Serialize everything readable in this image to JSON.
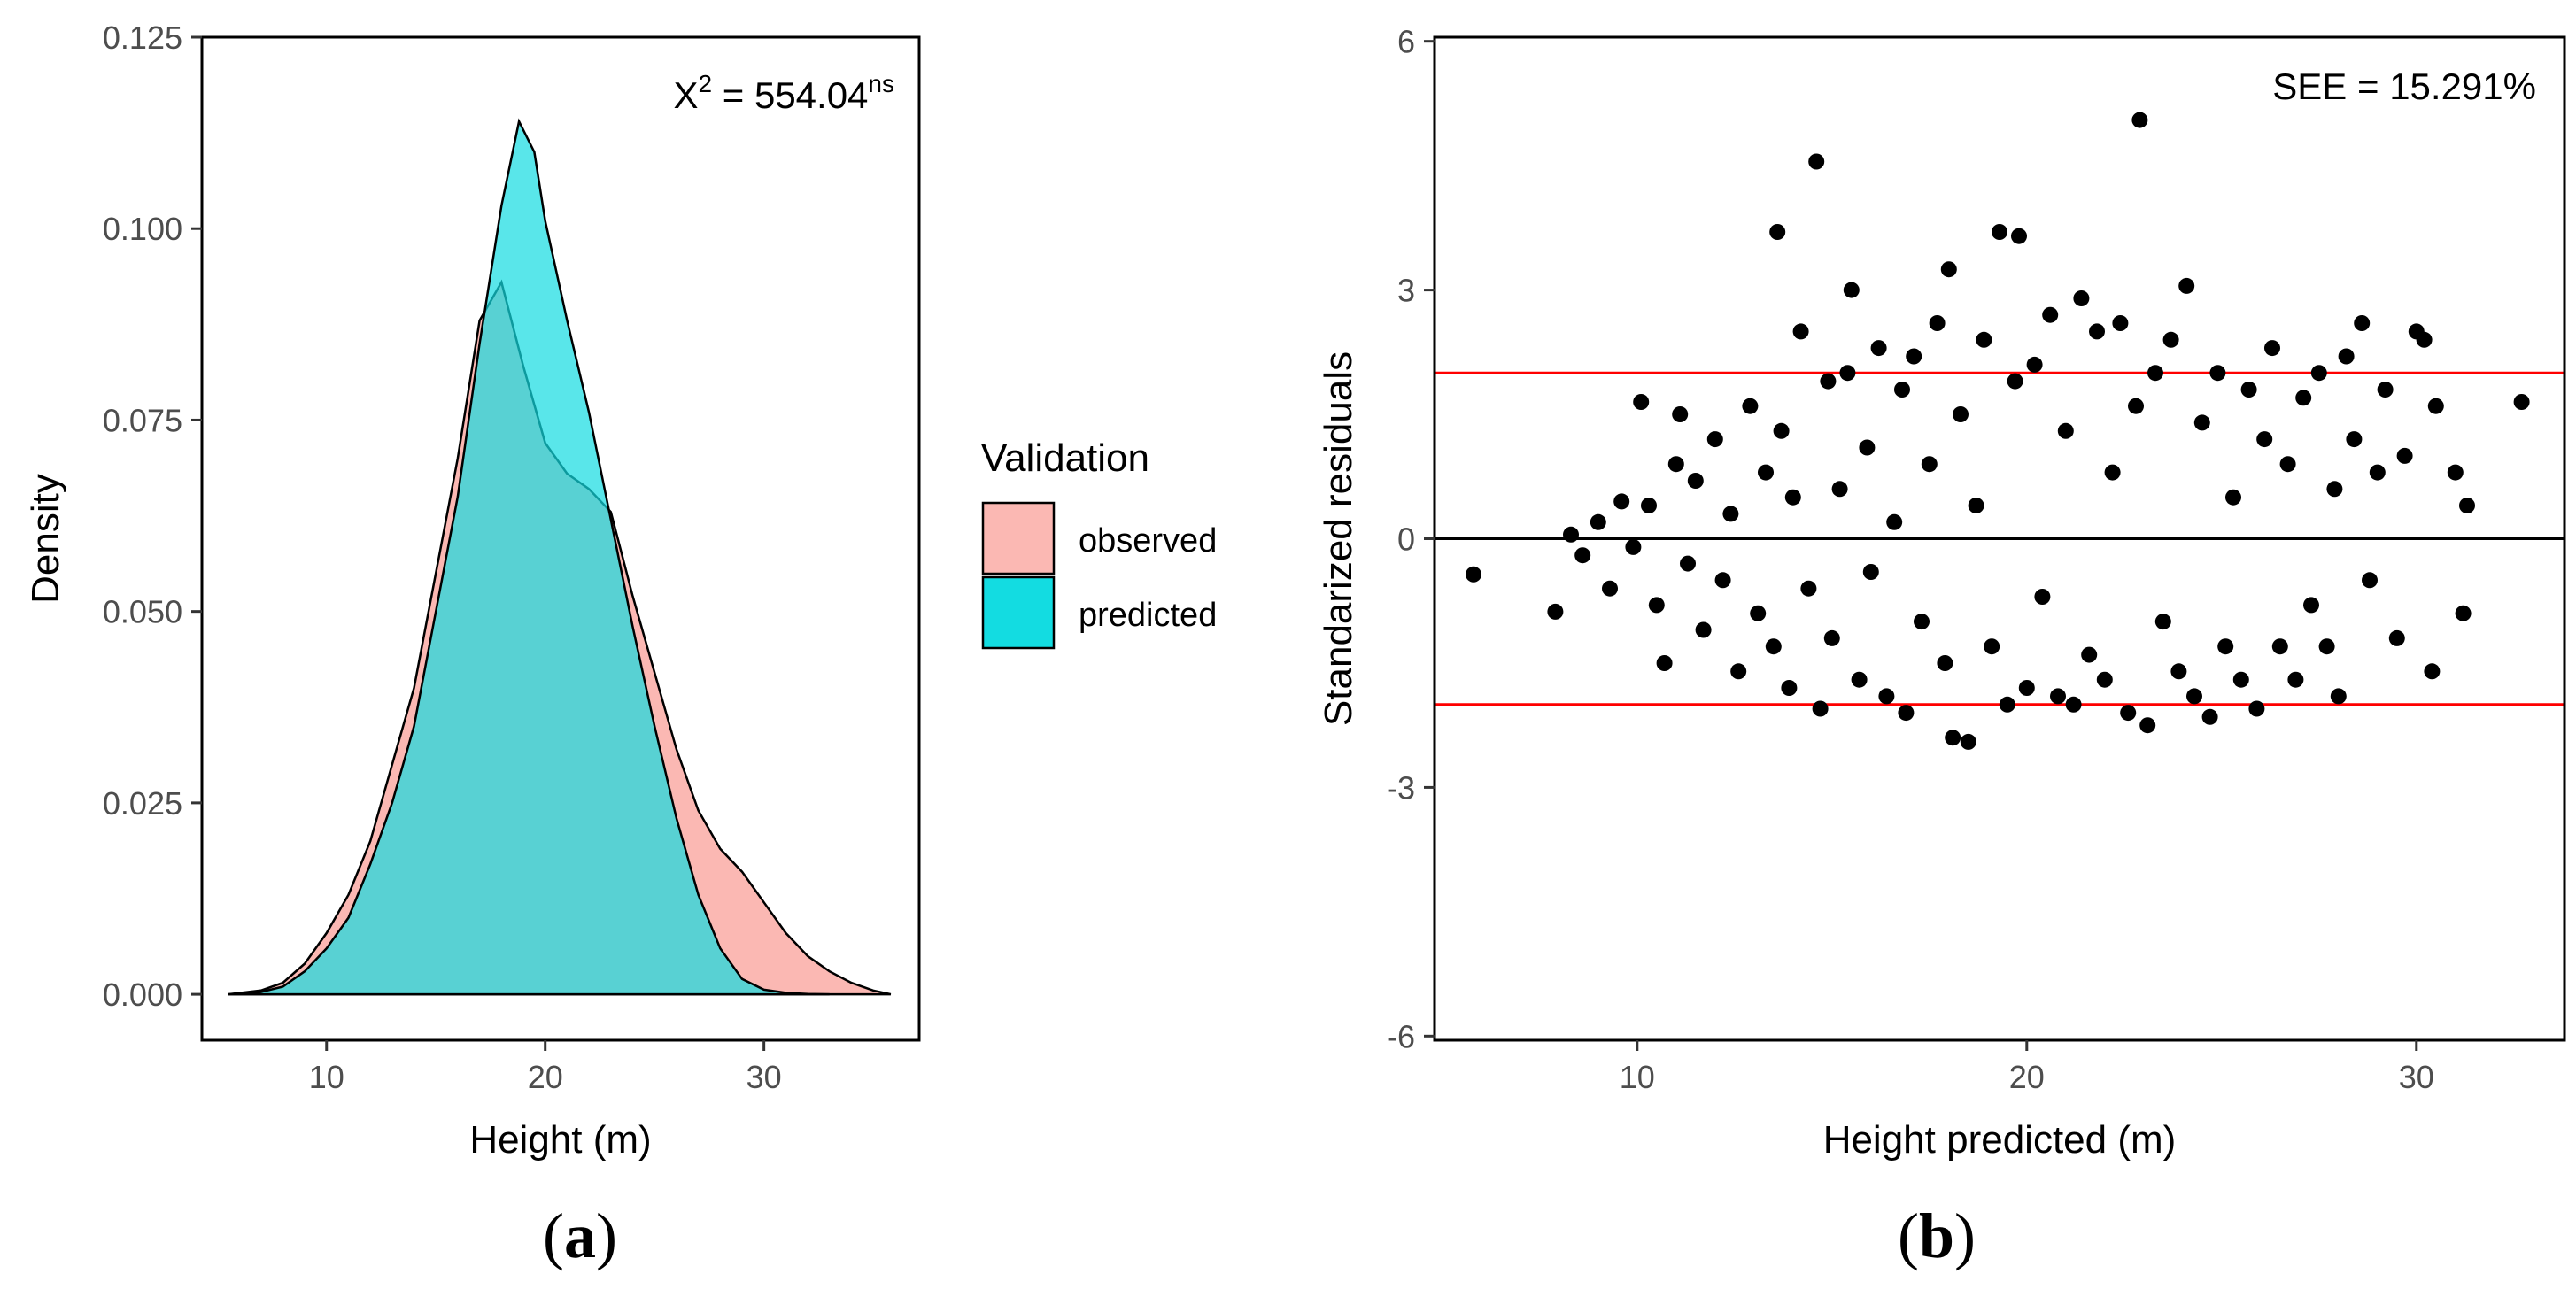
{
  "figure": {
    "label_a": "a",
    "label_b": "b"
  },
  "chart_data": [
    {
      "type": "area",
      "panel": "a",
      "xlabel": "Height (m)",
      "ylabel": "Density",
      "xlim": [
        4.3,
        37.1
      ],
      "ylim": [
        -0.006,
        0.125
      ],
      "xticks": [
        10,
        20,
        30
      ],
      "yticks": [
        0.0,
        0.025,
        0.05,
        0.075,
        0.1,
        0.125
      ],
      "ytick_labels": [
        "0.000",
        "0.025",
        "0.050",
        "0.075",
        "0.100",
        "0.125"
      ],
      "annotation": {
        "base": "X",
        "sup1": "2",
        "mid": " = 554.04",
        "sup2": "ns"
      },
      "grid": false,
      "legend": {
        "title": "Validation",
        "placement": "right",
        "entries": [
          {
            "label": "observed",
            "color": "#F8766D"
          },
          {
            "label": "predicted",
            "color": "#00BFC4"
          }
        ]
      },
      "series": [
        {
          "name": "observed",
          "color": "#F8766D",
          "fill": "#FBB8B3",
          "x": [
            5.5,
            7,
            8,
            9,
            10,
            11,
            12,
            13,
            14,
            15,
            16,
            17,
            18,
            19,
            20,
            21,
            22,
            23,
            24,
            25,
            26,
            27,
            28,
            29,
            30,
            31,
            32,
            33,
            34,
            35,
            35.8
          ],
          "y": [
            0.0,
            0.0005,
            0.0015,
            0.004,
            0.008,
            0.013,
            0.02,
            0.03,
            0.04,
            0.055,
            0.07,
            0.088,
            0.093,
            0.082,
            0.072,
            0.068,
            0.066,
            0.063,
            0.052,
            0.042,
            0.032,
            0.024,
            0.019,
            0.016,
            0.012,
            0.008,
            0.005,
            0.003,
            0.0015,
            0.0005,
            0.0
          ]
        },
        {
          "name": "predicted",
          "color": "#00BFC4",
          "fill": "#13DCE1",
          "x": [
            5.5,
            7,
            8,
            9,
            10,
            11,
            12,
            13,
            14,
            15,
            16,
            17,
            18,
            18.8,
            19.5,
            20,
            21,
            22,
            23,
            24,
            25,
            26,
            27,
            28,
            29,
            30,
            31,
            32,
            33
          ],
          "y": [
            0.0,
            0.0003,
            0.001,
            0.003,
            0.006,
            0.01,
            0.017,
            0.025,
            0.035,
            0.05,
            0.065,
            0.085,
            0.103,
            0.114,
            0.11,
            0.101,
            0.088,
            0.076,
            0.062,
            0.048,
            0.035,
            0.023,
            0.013,
            0.006,
            0.002,
            0.0006,
            0.0002,
            5e-05,
            0.0
          ]
        }
      ]
    },
    {
      "type": "scatter",
      "panel": "b",
      "xlabel": "Height predicted (m)",
      "ylabel": "Standarized residuals",
      "xlim": [
        4.8,
        33.8
      ],
      "ylim": [
        -6.05,
        6.05
      ],
      "xticks": [
        10,
        20,
        30
      ],
      "yticks": [
        -6,
        -3,
        0,
        3,
        6
      ],
      "annotation": "SEE = 15.291%",
      "grid": false,
      "reference_lines": [
        {
          "y": 2,
          "color": "#FF0000"
        },
        {
          "y": 0,
          "color": "#000000"
        },
        {
          "y": -2,
          "color": "#FF0000"
        }
      ],
      "point_color": "#000000",
      "points": [
        [
          5.8,
          -0.43
        ],
        [
          7.9,
          -0.88
        ],
        [
          8.3,
          0.05
        ],
        [
          8.6,
          -0.2
        ],
        [
          9.0,
          0.2
        ],
        [
          9.3,
          -0.6
        ],
        [
          9.6,
          0.45
        ],
        [
          9.9,
          -0.1
        ],
        [
          10.1,
          1.65
        ],
        [
          10.3,
          0.4
        ],
        [
          10.5,
          -0.8
        ],
        [
          10.7,
          -1.5
        ],
        [
          11.0,
          0.9
        ],
        [
          11.1,
          1.5
        ],
        [
          11.3,
          -0.3
        ],
        [
          11.5,
          0.7
        ],
        [
          11.7,
          -1.1
        ],
        [
          12.0,
          1.2
        ],
        [
          12.2,
          -0.5
        ],
        [
          12.4,
          0.3
        ],
        [
          12.6,
          -1.6
        ],
        [
          12.9,
          1.6
        ],
        [
          13.1,
          -0.9
        ],
        [
          13.3,
          0.8
        ],
        [
          13.5,
          -1.3
        ],
        [
          13.6,
          3.7
        ],
        [
          13.7,
          1.3
        ],
        [
          13.9,
          -1.8
        ],
        [
          14.0,
          0.5
        ],
        [
          14.2,
          2.5
        ],
        [
          14.4,
          -0.6
        ],
        [
          14.6,
          4.55
        ],
        [
          14.7,
          -2.05
        ],
        [
          14.9,
          1.9
        ],
        [
          15.0,
          -1.2
        ],
        [
          15.2,
          0.6
        ],
        [
          15.4,
          2.0
        ],
        [
          15.5,
          3.0
        ],
        [
          15.7,
          -1.7
        ],
        [
          15.9,
          1.1
        ],
        [
          16.0,
          -0.4
        ],
        [
          16.2,
          2.3
        ],
        [
          16.4,
          -1.9
        ],
        [
          16.6,
          0.2
        ],
        [
          16.8,
          1.8
        ],
        [
          16.9,
          -2.1
        ],
        [
          17.1,
          2.2
        ],
        [
          17.3,
          -1.0
        ],
        [
          17.5,
          0.9
        ],
        [
          17.7,
          2.6
        ],
        [
          17.9,
          -1.5
        ],
        [
          18.0,
          3.25
        ],
        [
          18.1,
          -2.4
        ],
        [
          18.3,
          1.5
        ],
        [
          18.5,
          -2.45
        ],
        [
          18.7,
          0.4
        ],
        [
          18.9,
          2.4
        ],
        [
          19.1,
          -1.3
        ],
        [
          19.3,
          3.7
        ],
        [
          19.5,
          -2.0
        ],
        [
          19.7,
          1.9
        ],
        [
          19.8,
          3.65
        ],
        [
          20.0,
          -1.8
        ],
        [
          20.2,
          2.1
        ],
        [
          20.4,
          -0.7
        ],
        [
          20.6,
          2.7
        ],
        [
          20.8,
          -1.9
        ],
        [
          21.0,
          1.3
        ],
        [
          21.2,
          -2.0
        ],
        [
          21.4,
          2.9
        ],
        [
          21.6,
          -1.4
        ],
        [
          21.8,
          2.5
        ],
        [
          22.0,
          -1.7
        ],
        [
          22.2,
          0.8
        ],
        [
          22.4,
          2.6
        ],
        [
          22.6,
          -2.1
        ],
        [
          22.8,
          1.6
        ],
        [
          22.9,
          5.05
        ],
        [
          23.1,
          -2.25
        ],
        [
          23.3,
          2.0
        ],
        [
          23.5,
          -1.0
        ],
        [
          23.7,
          2.4
        ],
        [
          23.9,
          -1.6
        ],
        [
          24.1,
          3.05
        ],
        [
          24.3,
          -1.9
        ],
        [
          24.5,
          1.4
        ],
        [
          24.7,
          -2.15
        ],
        [
          24.9,
          2.0
        ],
        [
          25.1,
          -1.3
        ],
        [
          25.3,
          0.5
        ],
        [
          25.5,
          -1.7
        ],
        [
          25.7,
          1.8
        ],
        [
          25.9,
          -2.05
        ],
        [
          26.1,
          1.2
        ],
        [
          26.3,
          2.3
        ],
        [
          26.5,
          -1.3
        ],
        [
          26.7,
          0.9
        ],
        [
          26.9,
          -1.7
        ],
        [
          27.1,
          1.7
        ],
        [
          27.3,
          -0.8
        ],
        [
          27.5,
          2.0
        ],
        [
          27.7,
          -1.3
        ],
        [
          27.9,
          0.6
        ],
        [
          28.0,
          -1.9
        ],
        [
          28.2,
          2.2
        ],
        [
          28.4,
          1.2
        ],
        [
          28.6,
          2.6
        ],
        [
          28.8,
          -0.5
        ],
        [
          29.0,
          0.8
        ],
        [
          29.2,
          1.8
        ],
        [
          29.5,
          -1.2
        ],
        [
          29.7,
          1.0
        ],
        [
          30.0,
          2.5
        ],
        [
          30.2,
          2.4
        ],
        [
          30.4,
          -1.6
        ],
        [
          30.5,
          1.6
        ],
        [
          31.0,
          0.8
        ],
        [
          31.2,
          -0.9
        ],
        [
          31.3,
          0.4
        ],
        [
          32.7,
          1.65
        ]
      ]
    }
  ]
}
